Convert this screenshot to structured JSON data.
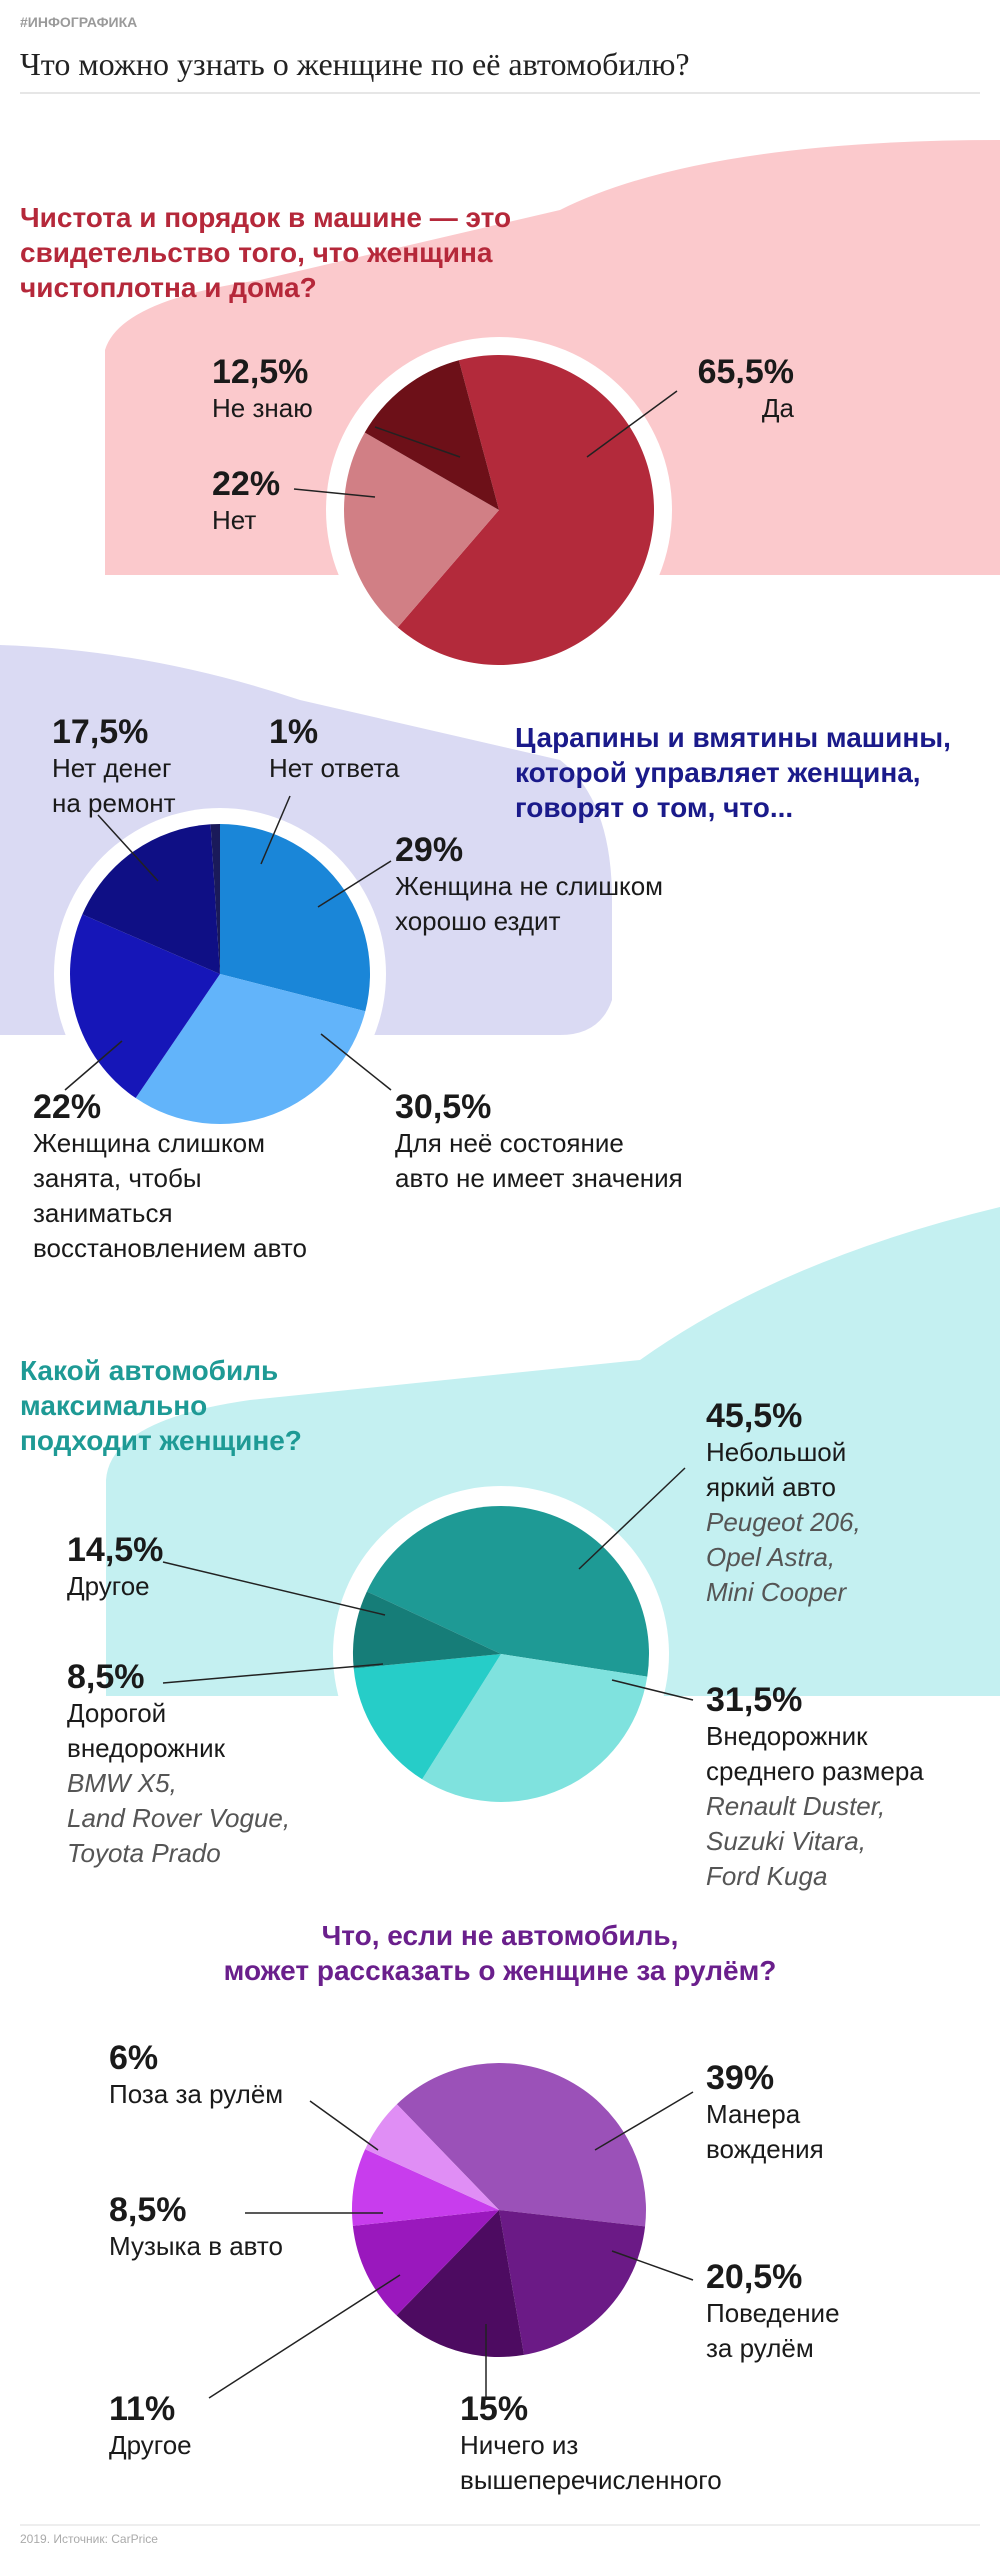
{
  "header": {
    "tag": "#ИНФОГРАФИКА",
    "title": "Что можно узнать о женщине по её автомобилю?"
  },
  "chart_data": [
    {
      "type": "pie",
      "title": "Чистота и порядок в машине — это\nсвидетельство того, что женщина\nчистоплотна и дома?",
      "title_color": "#b5283a",
      "categories": [
        "Да",
        "Нет",
        "Не знаю"
      ],
      "values": [
        65.5,
        22,
        12.5
      ],
      "value_labels": [
        "65,5%",
        "22%",
        "12,5%"
      ],
      "colors": [
        "#b32a3b",
        "#d17f85",
        "#6d1018"
      ]
    },
    {
      "type": "pie",
      "title": "Царапины и вмятины машины,\nкоторой управляет женщина,\nговорят о том, что...",
      "title_color": "#1a1a8a",
      "categories": [
        "Женщина не слишком\nхорошо ездит",
        "Для неё состояние\nавто не имеет значения",
        "Женщина слишком\nзанята, чтобы\nзаниматься\nвосстановлением авто",
        "Нет денег\nна ремонт",
        "Нет ответа"
      ],
      "values": [
        29,
        30.5,
        22,
        17.5,
        1
      ],
      "value_labels": [
        "29%",
        "30,5%",
        "22%",
        "17,5%",
        "1%"
      ],
      "colors": [
        "#1a86d8",
        "#62b4fa",
        "#1616b8",
        "#0f0f85",
        "#1a1a5a"
      ]
    },
    {
      "type": "pie",
      "title": "Какой автомобиль\nмаксимально\nподходит женщине?",
      "title_color": "#1e9a95",
      "categories": [
        "Небольшой\nяркий авто",
        "Внедорожник\nсреднего размера",
        "Другое",
        "Дорогой\nвнедорожник"
      ],
      "values": [
        45.5,
        31.5,
        14.5,
        8.5
      ],
      "value_labels": [
        "45,5%",
        "31,5%",
        "14,5%",
        "8,5%"
      ],
      "notes": [
        "Peugeot 206,\nOpel Astra,\nMini Cooper",
        "Renault Duster,\nSuzuki Vitara,\nFord Kuga",
        null,
        "BMW X5,\nLand Rover Vogue,\nToyota Prado"
      ],
      "colors": [
        "#1e9a95",
        "#7fe2de",
        "#26cdc8",
        "#167d78"
      ]
    },
    {
      "type": "pie",
      "title": "Что, если не автомобиль,\nможет рассказать о женщине за рулём?",
      "title_color": "#6a1f8c",
      "categories": [
        "Манера\nвождения",
        "Поведение\nза рулём",
        "Ничего из\nвышеперечисленного",
        "Другое",
        "Музыка в авто",
        "Поза за рулём"
      ],
      "values": [
        39,
        20.5,
        15,
        11,
        8.5,
        6
      ],
      "value_labels": [
        "39%",
        "20,5%",
        "15%",
        "11%",
        "8,5%",
        "6%"
      ],
      "colors": [
        "#9b51b8",
        "#6b1a86",
        "#4d0b61",
        "#9a18bd",
        "#c83ded",
        "#e08ef5"
      ]
    }
  ],
  "footer": {
    "source": "2019. Источник: CarPrice"
  }
}
